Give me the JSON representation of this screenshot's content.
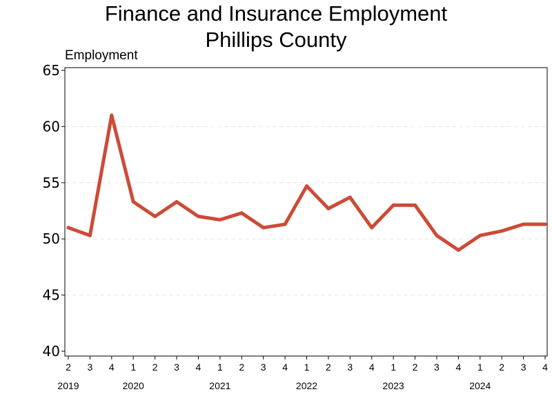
{
  "chart_data": {
    "type": "line",
    "title": "Finance and Insurance Employment",
    "subtitle": "Phillips County",
    "ylabel": "Employment",
    "xlabel": "",
    "ylim": [
      40,
      65
    ],
    "yticks": [
      40,
      45,
      50,
      55,
      60,
      65
    ],
    "grid": true,
    "line_color": "#cc4b37",
    "categories": [
      "2019 Q2",
      "2019 Q3",
      "2019 Q4",
      "2020 Q1",
      "2020 Q2",
      "2020 Q3",
      "2020 Q4",
      "2021 Q1",
      "2021 Q2",
      "2021 Q3",
      "2021 Q4",
      "2022 Q1",
      "2022 Q2",
      "2022 Q3",
      "2022 Q4",
      "2023 Q1",
      "2023 Q2",
      "2023 Q3",
      "2023 Q4",
      "2024 Q1",
      "2024 Q2",
      "2024 Q3",
      "2024 Q4"
    ],
    "quarter_labels": [
      "2",
      "3",
      "4",
      "1",
      "2",
      "3",
      "4",
      "1",
      "2",
      "3",
      "4",
      "1",
      "2",
      "3",
      "4",
      "1",
      "2",
      "3",
      "4",
      "1",
      "2",
      "3",
      "4"
    ],
    "years": [
      {
        "label": "2019",
        "anchor_index": 0
      },
      {
        "label": "2020",
        "anchor_index": 3
      },
      {
        "label": "2021",
        "anchor_index": 7
      },
      {
        "label": "2022",
        "anchor_index": 11
      },
      {
        "label": "2023",
        "anchor_index": 15
      },
      {
        "label": "2024",
        "anchor_index": 19
      }
    ],
    "series": [
      {
        "values": [
          51,
          50.3,
          61,
          53.3,
          52,
          53.3,
          52,
          51.7,
          52.3,
          51,
          51.3,
          54.7,
          52.7,
          53.7,
          51,
          53,
          53,
          50.3,
          49,
          50.3,
          50.7,
          51.3,
          51.3
        ]
      }
    ]
  }
}
